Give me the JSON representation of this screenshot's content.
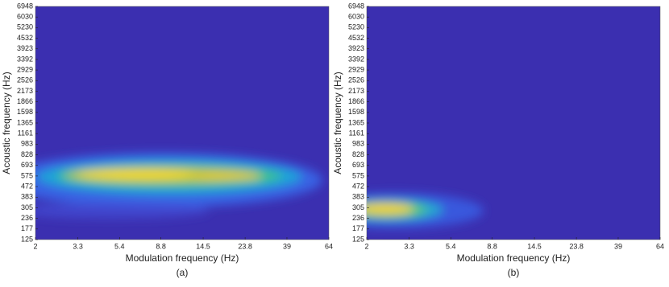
{
  "chart_data": [
    {
      "type": "heatmap",
      "xlabel": "Modulation frequency (Hz)",
      "ylabel": "Acoustic frequency (Hz)",
      "caption": "(a)",
      "xscale": "log",
      "xlim": [
        2,
        64
      ],
      "xticks": [
        2,
        3.3,
        5.4,
        8.8,
        14.5,
        23.8,
        39,
        64
      ],
      "yticks": [
        125,
        177,
        236,
        305,
        383,
        472,
        575,
        693,
        828,
        983,
        1161,
        1365,
        1598,
        1866,
        2173,
        2526,
        2929,
        3392,
        3923,
        4532,
        5230,
        6030,
        6948
      ]
    },
    {
      "type": "heatmap",
      "xlabel": "Modulation frequency (Hz)",
      "ylabel": "Acoustic frequency (Hz)",
      "caption": "(b)",
      "xscale": "log",
      "xlim": [
        2,
        64
      ],
      "xticks": [
        2,
        3.3,
        5.4,
        8.8,
        14.5,
        23.8,
        39,
        64
      ],
      "yticks": [
        125,
        177,
        236,
        305,
        383,
        472,
        575,
        693,
        828,
        983,
        1161,
        1365,
        1598,
        1866,
        2173,
        2526,
        2929,
        3392,
        3923,
        4532,
        5230,
        6030,
        6948
      ]
    }
  ]
}
